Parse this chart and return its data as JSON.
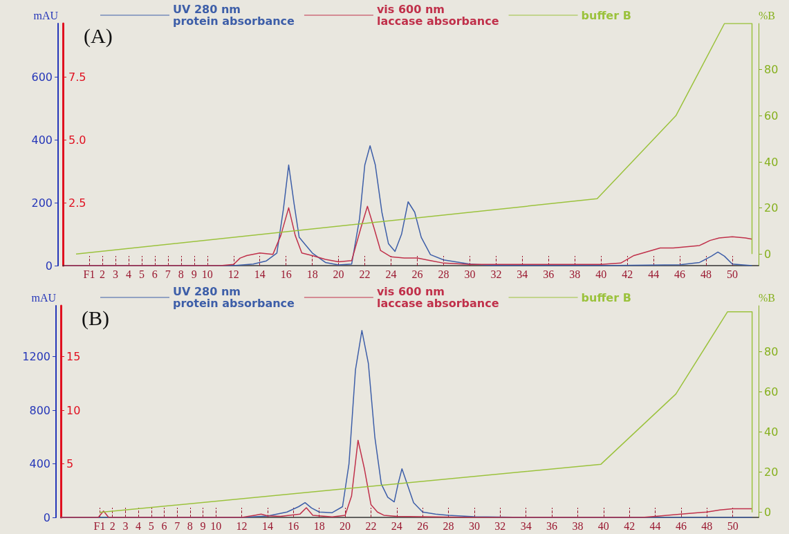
{
  "chart_data": [
    {
      "type": "line",
      "annotations": [
        "(A)"
      ],
      "ylabel": "mAU",
      "y3label": "%B",
      "legend": "top",
      "marker": "none",
      "xlim": [
        -1,
        52
      ],
      "xticks": [
        {
          "value": 1,
          "label": "F1"
        },
        2,
        3,
        4,
        5,
        6,
        7,
        8,
        9,
        10,
        12,
        14,
        16,
        18,
        20,
        22,
        24,
        26,
        28,
        30,
        32,
        34,
        36,
        38,
        40,
        42,
        44,
        46,
        48,
        50
      ],
      "ylim": [
        0,
        770
      ],
      "yticks": [
        0,
        200,
        400,
        600
      ],
      "y2lim": [
        0,
        9.625
      ],
      "y2ticks": [
        2.5,
        {
          "value": 5,
          "label": "5.0"
        },
        7.5
      ],
      "y3lim": [
        -5,
        100
      ],
      "y3ticks": [
        0,
        20,
        40,
        60,
        80
      ],
      "series": [
        {
          "name": "UV 280 nm\nprotein absorbance",
          "color": "#3d5ea8",
          "axis": "y",
          "x": [
            -0.9,
            12,
            13.5,
            14.5,
            15.3,
            15.8,
            16.2,
            16.6,
            17,
            17.5,
            18,
            19,
            20,
            21,
            21.6,
            22,
            22.4,
            22.8,
            23.3,
            23.8,
            24.3,
            24.8,
            25.3,
            25.8,
            26.3,
            27,
            28,
            30,
            32,
            40,
            46,
            47.5,
            48.4,
            48.9,
            49.4,
            50,
            51.5
          ],
          "values": [
            0,
            0,
            5,
            15,
            40,
            180,
            320,
            200,
            90,
            65,
            40,
            10,
            2,
            5,
            150,
            320,
            381,
            320,
            170,
            70,
            45,
            100,
            203,
            170,
            90,
            35,
            18,
            5,
            0,
            0,
            3,
            10,
            30,
            43,
            30,
            5,
            0
          ]
        },
        {
          "name": "vis 600 nm\nlaccase absorbance",
          "color": "#c0304a",
          "axis": "y2",
          "x": [
            -0.9,
            11,
            12,
            12.5,
            13,
            14,
            15,
            15.6,
            16.2,
            16.7,
            17.2,
            18,
            19,
            20,
            21,
            21.7,
            22.2,
            22.7,
            23.2,
            24,
            25,
            26,
            27,
            28,
            30,
            35,
            40,
            41.5,
            42.5,
            43.5,
            44.5,
            45.5,
            46.5,
            47.5,
            48.3,
            49,
            50,
            51,
            51.5
          ],
          "values": [
            0,
            0,
            0.05,
            0.3,
            0.4,
            0.5,
            0.45,
            1.2,
            2.3,
            1.2,
            0.5,
            0.4,
            0.25,
            0.15,
            0.2,
            1.5,
            2.36,
            1.5,
            0.6,
            0.35,
            0.3,
            0.3,
            0.2,
            0.1,
            0.05,
            0.05,
            0.05,
            0.1,
            0.4,
            0.55,
            0.7,
            0.7,
            0.75,
            0.8,
            1,
            1.1,
            1.15,
            1.1,
            1.05
          ]
        },
        {
          "name": "buffer B",
          "color": "#9bc23c",
          "axis": "y3",
          "x": [
            0,
            39.7,
            45.7,
            49.4,
            51.5,
            51.5
          ],
          "values": [
            0,
            24,
            60,
            100,
            100,
            0
          ]
        }
      ]
    },
    {
      "type": "line",
      "annotations": [
        "(B)"
      ],
      "ylabel": "mAU",
      "y3label": "%B",
      "legend": "top",
      "marker": "none",
      "xlim": [
        -2,
        52
      ],
      "xticks": [
        {
          "value": 1,
          "label": "F1"
        },
        2,
        3,
        4,
        5,
        6,
        7,
        8,
        9,
        10,
        12,
        14,
        16,
        18,
        20,
        22,
        24,
        26,
        28,
        30,
        32,
        34,
        36,
        38,
        40,
        42,
        44,
        46,
        48,
        50
      ],
      "ylim": [
        0,
        1580
      ],
      "yticks": [
        0,
        400,
        800,
        1200
      ],
      "y2lim": [
        0,
        19.75
      ],
      "y2ticks": [
        5,
        10,
        15
      ],
      "y3lim": [
        -2.5,
        103
      ],
      "y3ticks": [
        0,
        20,
        40,
        60,
        80
      ],
      "series": [
        {
          "name": "UV 280 nm\nprotein absorbance",
          "color": "#3d5ea8",
          "axis": "y",
          "x": [
            -2,
            12,
            14,
            15.5,
            16.4,
            16.9,
            17.4,
            18,
            19,
            19.8,
            20.3,
            20.8,
            21.3,
            21.8,
            22.3,
            22.8,
            23.3,
            23.8,
            24.1,
            24.4,
            24.8,
            25.3,
            26,
            27,
            28,
            30,
            34,
            46,
            51.5
          ],
          "values": [
            0,
            0,
            10,
            40,
            80,
            110,
            70,
            40,
            35,
            80,
            400,
            1100,
            1395,
            1150,
            600,
            250,
            150,
            116,
            250,
            363,
            250,
            110,
            40,
            25,
            15,
            5,
            0,
            0,
            0
          ]
        },
        {
          "name": "vis 600 nm\nlaccase absorbance",
          "color": "#c0304a",
          "axis": "y2",
          "x": [
            -2,
            0.9,
            1.3,
            1.7,
            3,
            12,
            13,
            13.5,
            14,
            15,
            16.5,
            17,
            17.5,
            19,
            20,
            20.5,
            21,
            21.5,
            22,
            22.5,
            23,
            24,
            30,
            43,
            44,
            46,
            48,
            49,
            50,
            51,
            51.5
          ],
          "values": [
            0,
            0,
            0.6,
            0,
            0,
            0,
            0.2,
            0.3,
            0.15,
            0.1,
            0.3,
            0.9,
            0.2,
            0.05,
            0.2,
            2,
            7.2,
            4.5,
            1.2,
            0.5,
            0.2,
            0.1,
            0,
            0,
            0.1,
            0.3,
            0.5,
            0.7,
            0.8,
            0.8,
            0.8
          ]
        },
        {
          "name": "buffer B",
          "color": "#9bc23c",
          "axis": "y3",
          "x": [
            1,
            39.8,
            45.6,
            49.6,
            51.5,
            51.5
          ],
          "values": [
            0,
            24,
            59,
            100,
            100,
            0
          ]
        }
      ]
    }
  ]
}
